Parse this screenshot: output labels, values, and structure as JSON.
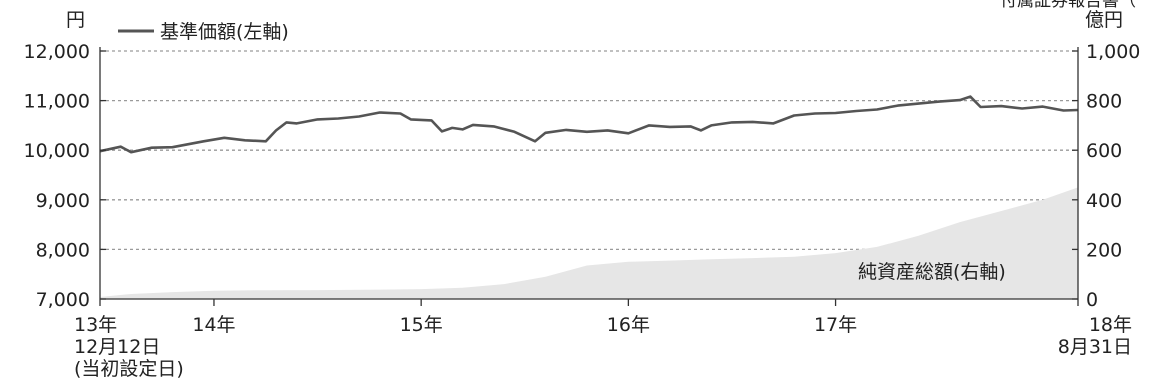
{
  "top_right_clip": "付属証券報告書（",
  "chart_data": {
    "type": "line",
    "left_unit": "円",
    "right_unit": "億円",
    "left_axis": {
      "ylim": [
        7000,
        12000
      ],
      "ticks": [
        "7,000",
        "8,000",
        "9,000",
        "10,000",
        "11,000",
        "12,000"
      ],
      "tick_values": [
        7000,
        8000,
        9000,
        10000,
        11000,
        12000
      ]
    },
    "right_axis": {
      "ylim": [
        0,
        1000
      ],
      "ticks": [
        "0",
        "200",
        "400",
        "600",
        "800",
        "1,000"
      ],
      "tick_values": [
        0,
        200,
        400,
        600,
        800,
        1000
      ]
    },
    "x_range": [
      2013.95,
      2018.67
    ],
    "x_ticks": [
      {
        "value": 2013.95,
        "lines": [
          "13年",
          "12月12日",
          "(当初設定日)"
        ]
      },
      {
        "value": 2014.5,
        "lines": [
          "14年"
        ]
      },
      {
        "value": 2015.5,
        "lines": [
          "15年"
        ]
      },
      {
        "value": 2016.5,
        "lines": [
          "16年"
        ]
      },
      {
        "value": 2017.5,
        "lines": [
          "17年"
        ]
      },
      {
        "value": 2018.67,
        "lines": [
          "18年",
          "8月31日"
        ]
      }
    ],
    "grid": true,
    "series": [
      {
        "name": "基準価額(左軸)",
        "axis": "left",
        "style": "line",
        "color": "#555555",
        "x": [
          2013.95,
          2014.05,
          2014.1,
          2014.2,
          2014.3,
          2014.45,
          2014.55,
          2014.65,
          2014.75,
          2014.8,
          2014.85,
          2014.9,
          2015.0,
          2015.1,
          2015.2,
          2015.3,
          2015.4,
          2015.45,
          2015.55,
          2015.6,
          2015.65,
          2015.7,
          2015.75,
          2015.85,
          2015.95,
          2016.05,
          2016.1,
          2016.2,
          2016.3,
          2016.4,
          2016.5,
          2016.6,
          2016.7,
          2016.8,
          2016.85,
          2016.9,
          2017.0,
          2017.1,
          2017.2,
          2017.3,
          2017.4,
          2017.5,
          2017.6,
          2017.7,
          2017.8,
          2017.9,
          2018.0,
          2018.1,
          2018.15,
          2018.2,
          2018.3,
          2018.4,
          2018.5,
          2018.6,
          2018.67
        ],
        "values": [
          9980,
          10070,
          9960,
          10050,
          10060,
          10180,
          10250,
          10200,
          10180,
          10400,
          10560,
          10540,
          10620,
          10640,
          10680,
          10760,
          10740,
          10620,
          10600,
          10380,
          10450,
          10420,
          10510,
          10480,
          10370,
          10180,
          10350,
          10410,
          10370,
          10400,
          10340,
          10500,
          10470,
          10480,
          10400,
          10500,
          10560,
          10570,
          10540,
          10700,
          10740,
          10750,
          10790,
          10820,
          10900,
          10940,
          10980,
          11010,
          11080,
          10870,
          10890,
          10840,
          10880,
          10800,
          10810
        ]
      },
      {
        "name": "純資産総額(右軸)",
        "axis": "right",
        "style": "area",
        "color": "#e6e6e6",
        "x": [
          2013.95,
          2014.1,
          2014.3,
          2014.5,
          2014.7,
          2015.0,
          2015.3,
          2015.5,
          2015.7,
          2015.9,
          2016.1,
          2016.3,
          2016.5,
          2016.7,
          2016.9,
          2017.1,
          2017.3,
          2017.5,
          2017.7,
          2017.9,
          2018.1,
          2018.3,
          2018.5,
          2018.67
        ],
        "values": [
          8,
          20,
          28,
          33,
          35,
          36,
          38,
          40,
          45,
          60,
          90,
          135,
          150,
          155,
          160,
          165,
          170,
          185,
          210,
          255,
          310,
          355,
          400,
          450
        ]
      }
    ]
  }
}
